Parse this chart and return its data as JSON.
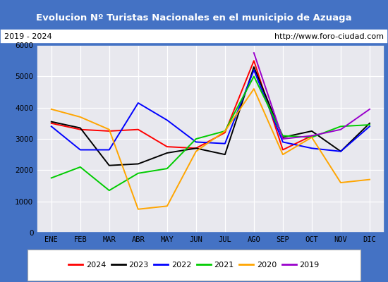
{
  "title": "Evolucion Nº Turistas Nacionales en el municipio de Azuaga",
  "subtitle_left": "2019 - 2024",
  "subtitle_right": "http://www.foro-ciudad.com",
  "months": [
    "ENE",
    "FEB",
    "MAR",
    "ABR",
    "MAY",
    "JUN",
    "JUL",
    "AGO",
    "SEP",
    "OCT",
    "NOV",
    "DIC"
  ],
  "series": {
    "2024": {
      "color": "#ff0000",
      "data": [
        3500,
        3300,
        3250,
        3300,
        2750,
        2700,
        3200,
        5500,
        2650,
        3100,
        null,
        null
      ]
    },
    "2023": {
      "color": "#000000",
      "data": [
        3550,
        3350,
        2150,
        2200,
        2550,
        2700,
        2500,
        5300,
        3050,
        3250,
        2600,
        3500
      ]
    },
    "2022": {
      "color": "#0000ff",
      "data": [
        3400,
        2650,
        2650,
        4150,
        3600,
        2900,
        2850,
        5200,
        2900,
        2700,
        2600,
        3400
      ]
    },
    "2021": {
      "color": "#00cc00",
      "data": [
        1750,
        2100,
        1350,
        1900,
        2050,
        3000,
        3250,
        5000,
        3100,
        3050,
        3400,
        3450
      ]
    },
    "2020": {
      "color": "#ffa500",
      "data": [
        3950,
        3700,
        3300,
        750,
        850,
        2600,
        3250,
        4600,
        2500,
        3050,
        1600,
        1700
      ]
    },
    "2019": {
      "color": "#9900cc",
      "data": [
        null,
        null,
        null,
        null,
        null,
        null,
        null,
        5750,
        3000,
        3100,
        3300,
        3950
      ]
    }
  },
  "ylim": [
    0,
    6000
  ],
  "yticks": [
    0,
    1000,
    2000,
    3000,
    4000,
    5000,
    6000
  ],
  "background_color": "#e8e8ee",
  "title_bg_color": "#4472c4",
  "title_color": "#ffffff",
  "grid_color": "#ffffff",
  "border_color": "#4472c4",
  "fig_bg_color": "#4472c4"
}
